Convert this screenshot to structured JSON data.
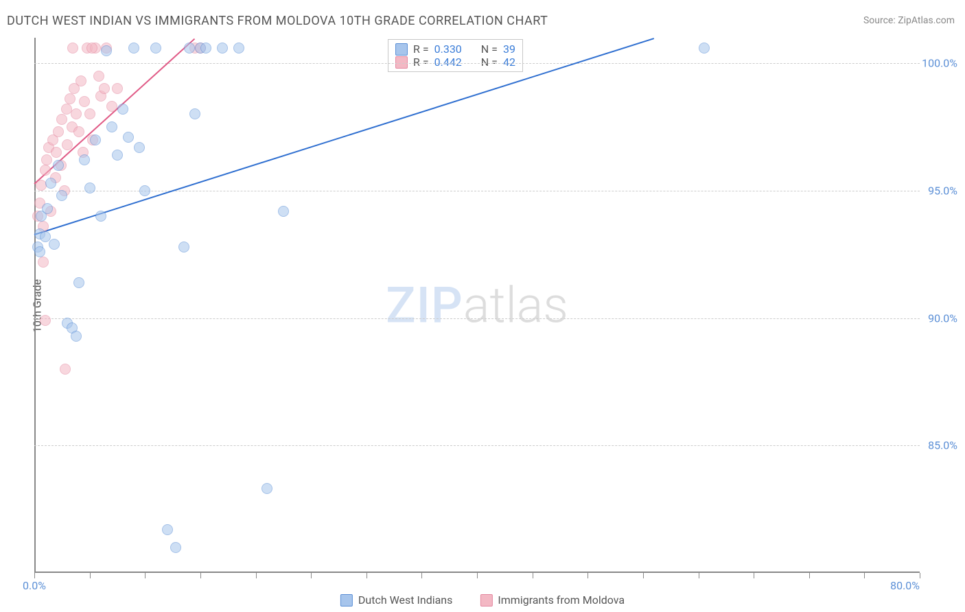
{
  "title": "DUTCH WEST INDIAN VS IMMIGRANTS FROM MOLDOVA 10TH GRADE CORRELATION CHART",
  "source_label": "Source:",
  "source_value": "ZipAtlas.com",
  "ylabel": "10th Grade",
  "watermark_a": "ZIP",
  "watermark_b": "atlas",
  "chart": {
    "type": "scatter",
    "xlim": [
      0,
      80
    ],
    "ylim": [
      80,
      101
    ],
    "x_tick_label_left": "0.0%",
    "x_tick_label_right": "80.0%",
    "x_minor_ticks": [
      0,
      5,
      10,
      15,
      20,
      25,
      30,
      35,
      40,
      45,
      50,
      55,
      60,
      65,
      70,
      75,
      80
    ],
    "y_ticks": [
      85,
      90,
      95,
      100
    ],
    "y_tick_labels": [
      "85.0%",
      "90.0%",
      "95.0%",
      "100.0%"
    ],
    "grid_color": "#cccccc",
    "axis_color": "#888888",
    "background_color": "#ffffff",
    "marker_radius": 8,
    "marker_opacity": 0.55,
    "marker_border_opacity": 0.9,
    "series": [
      {
        "id": "dutch",
        "label": "Dutch West Indians",
        "fill": "#a7c5ec",
        "stroke": "#5b8fd6",
        "R": "0.330",
        "N": "39",
        "trend": {
          "x1": 0,
          "y1": 93.3,
          "x2": 56,
          "y2": 101,
          "color": "#2f6fd0",
          "width": 2
        },
        "points": [
          [
            0.3,
            92.8
          ],
          [
            0.5,
            93.3
          ],
          [
            0.6,
            94.0
          ],
          [
            1.0,
            93.2
          ],
          [
            1.2,
            94.3
          ],
          [
            1.5,
            95.3
          ],
          [
            1.8,
            92.9
          ],
          [
            2.2,
            96.0
          ],
          [
            2.5,
            94.8
          ],
          [
            3.0,
            89.8
          ],
          [
            3.4,
            89.6
          ],
          [
            3.8,
            89.3
          ],
          [
            4.0,
            91.4
          ],
          [
            4.5,
            96.2
          ],
          [
            5.0,
            95.1
          ],
          [
            5.5,
            97.0
          ],
          [
            6.0,
            94.0
          ],
          [
            6.5,
            100.5
          ],
          [
            7.0,
            97.5
          ],
          [
            7.5,
            96.4
          ],
          [
            8.0,
            98.2
          ],
          [
            8.5,
            97.1
          ],
          [
            9.0,
            100.6
          ],
          [
            9.5,
            96.7
          ],
          [
            10.0,
            95.0
          ],
          [
            11.0,
            100.6
          ],
          [
            12.0,
            81.7
          ],
          [
            12.8,
            81.0
          ],
          [
            13.5,
            92.8
          ],
          [
            14.0,
            100.6
          ],
          [
            14.5,
            98.0
          ],
          [
            15.0,
            100.6
          ],
          [
            15.5,
            100.6
          ],
          [
            17.0,
            100.6
          ],
          [
            18.5,
            100.6
          ],
          [
            21.0,
            83.3
          ],
          [
            22.5,
            94.2
          ],
          [
            60.5,
            100.6
          ],
          [
            0.5,
            92.6
          ]
        ]
      },
      {
        "id": "moldova",
        "label": "Immigrants from Moldova",
        "fill": "#f3b8c4",
        "stroke": "#e488a0",
        "R": "0.442",
        "N": "42",
        "trend": {
          "x1": 0,
          "y1": 95.3,
          "x2": 14.5,
          "y2": 101,
          "color": "#e05a86",
          "width": 2
        },
        "points": [
          [
            0.3,
            94.0
          ],
          [
            0.5,
            94.5
          ],
          [
            0.6,
            95.2
          ],
          [
            0.8,
            93.6
          ],
          [
            1.0,
            95.8
          ],
          [
            1.1,
            96.2
          ],
          [
            1.3,
            96.7
          ],
          [
            1.5,
            94.2
          ],
          [
            1.7,
            97.0
          ],
          [
            1.9,
            95.5
          ],
          [
            2.0,
            96.5
          ],
          [
            2.2,
            97.3
          ],
          [
            2.4,
            96.0
          ],
          [
            2.5,
            97.8
          ],
          [
            2.7,
            95.0
          ],
          [
            2.9,
            98.2
          ],
          [
            3.0,
            96.8
          ],
          [
            3.2,
            98.6
          ],
          [
            3.4,
            97.5
          ],
          [
            3.6,
            99.0
          ],
          [
            3.8,
            98.0
          ],
          [
            4.0,
            97.3
          ],
          [
            4.2,
            99.3
          ],
          [
            4.4,
            96.5
          ],
          [
            4.8,
            100.6
          ],
          [
            5.0,
            98.0
          ],
          [
            5.3,
            97.0
          ],
          [
            5.5,
            100.6
          ],
          [
            5.8,
            99.5
          ],
          [
            6.0,
            98.7
          ],
          [
            6.3,
            99.0
          ],
          [
            6.5,
            100.6
          ],
          [
            7.0,
            98.3
          ],
          [
            7.5,
            99.0
          ],
          [
            1.0,
            89.9
          ],
          [
            2.8,
            88.0
          ],
          [
            3.5,
            100.6
          ],
          [
            4.5,
            98.5
          ],
          [
            5.2,
            100.6
          ],
          [
            14.5,
            100.6
          ],
          [
            15.0,
            100.6
          ],
          [
            0.8,
            92.2
          ]
        ]
      }
    ]
  },
  "legend_top": {
    "r_label": "R =",
    "n_label": "N ="
  }
}
